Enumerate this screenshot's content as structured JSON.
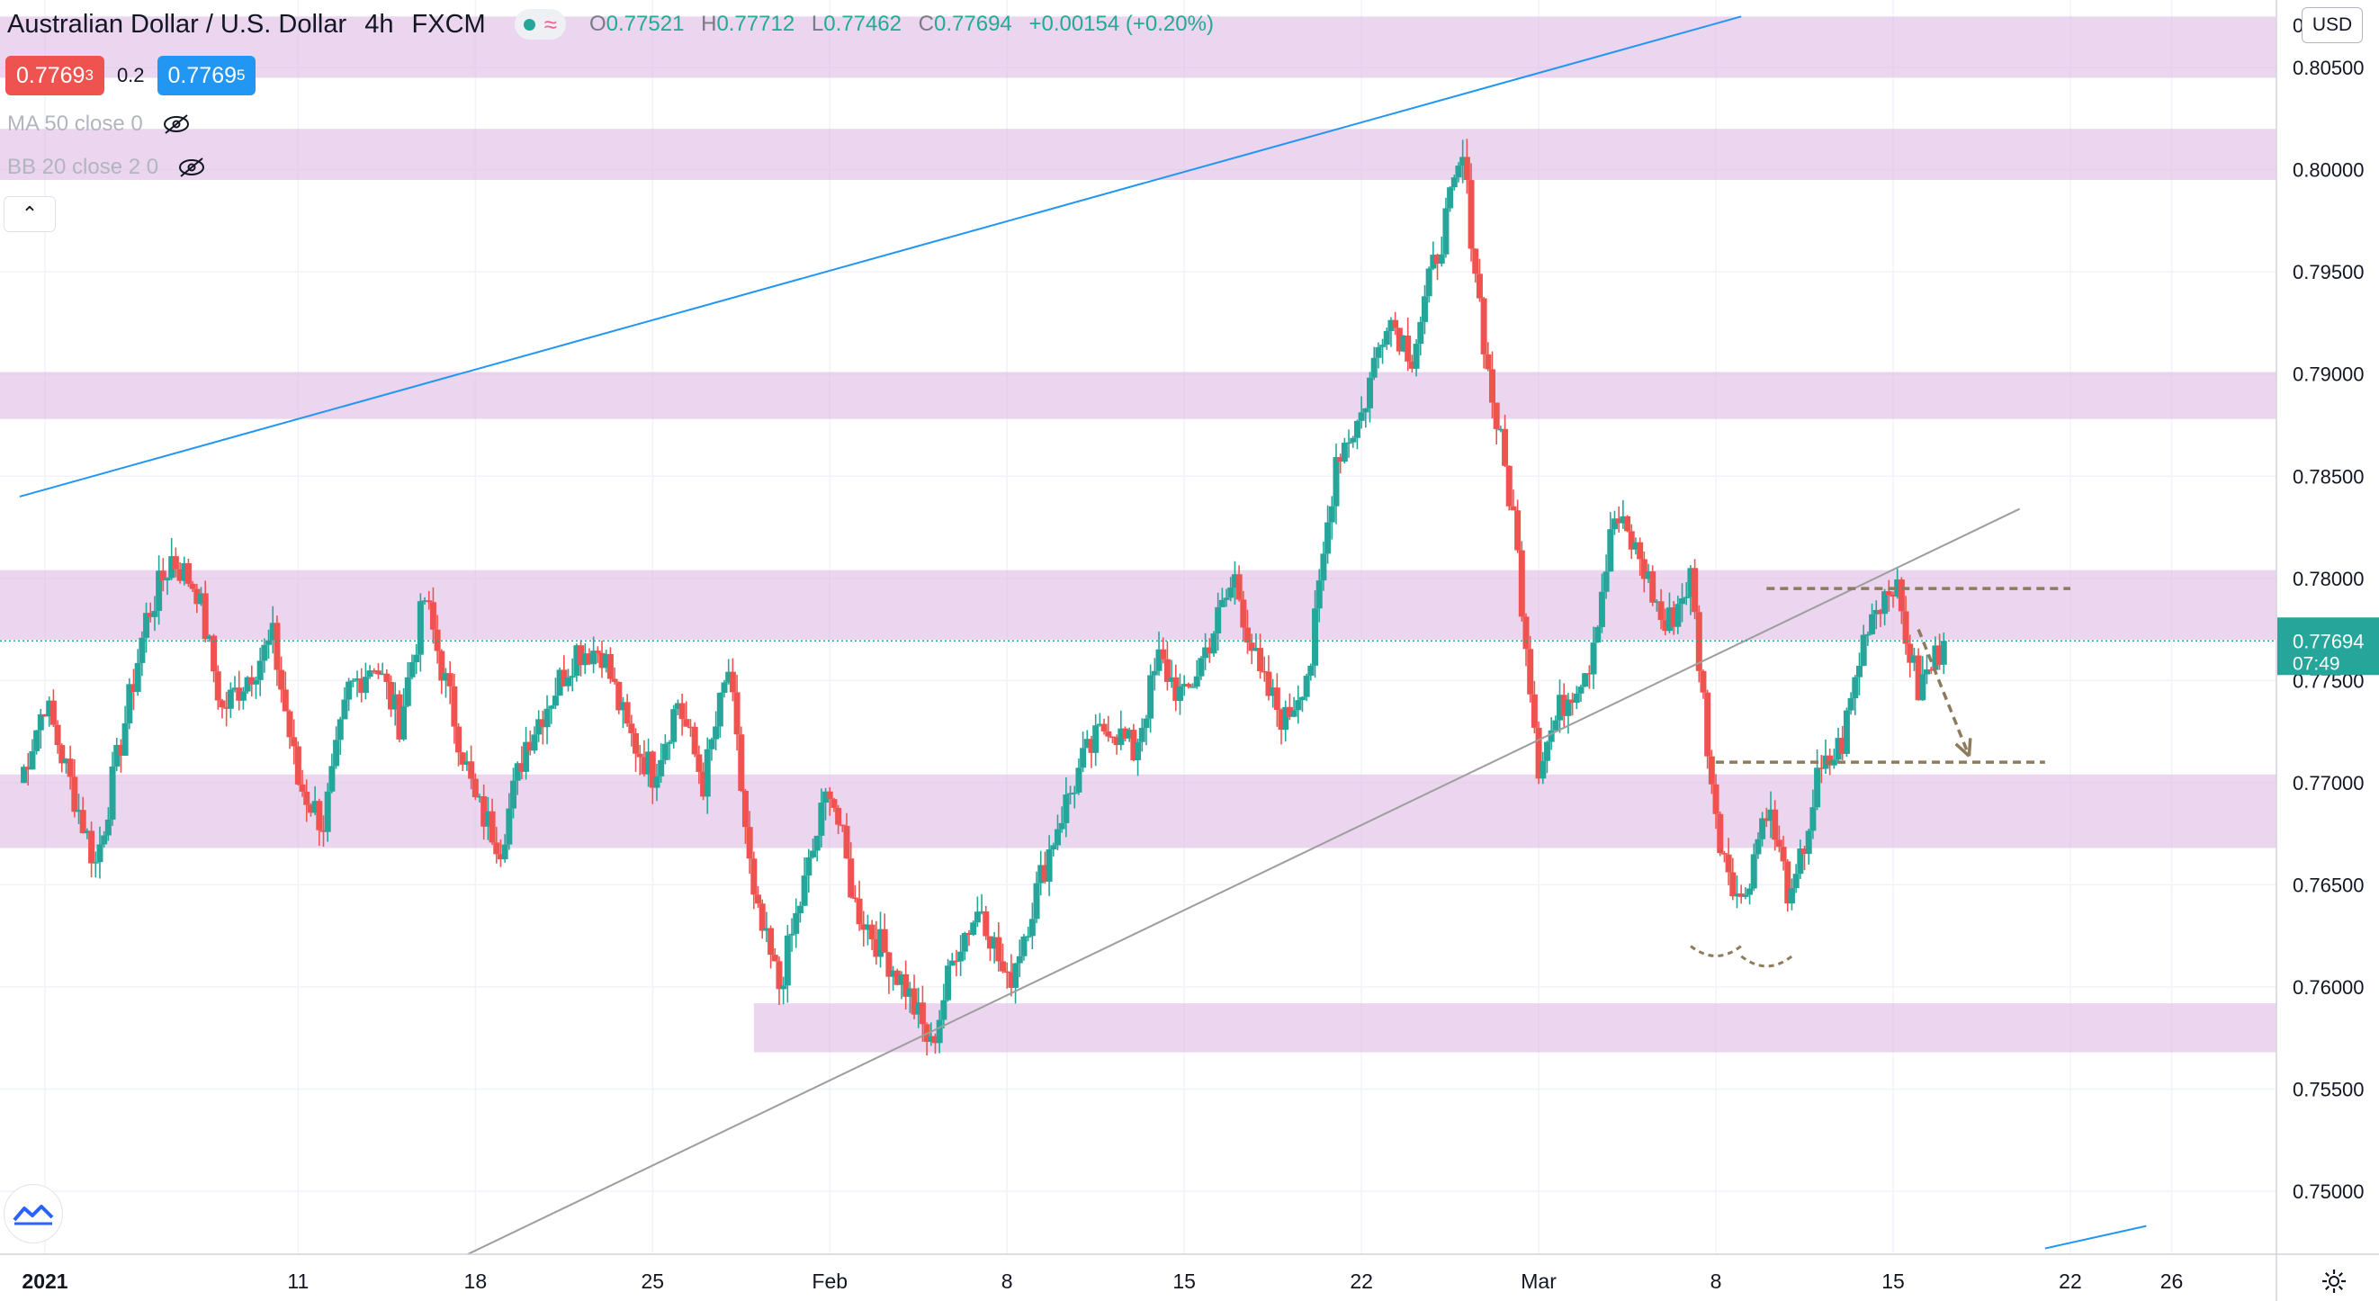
{
  "legend": {
    "symbol": "Australian Dollar / U.S. Dollar",
    "interval": "4h",
    "exchange": "FXCM",
    "ohlc": {
      "o_label": "O",
      "o": "0.77521",
      "h_label": "H",
      "h": "0.77712",
      "l_label": "L",
      "l": "0.77462",
      "c_label": "C",
      "c": "0.77694",
      "change": "+0.00154 (+0.20%)"
    },
    "sell_price": "0.7769",
    "sell_price_sup": "3",
    "spread": "0.2",
    "buy_price": "0.7769",
    "buy_price_sup": "5",
    "indicators": [
      {
        "label": "MA 50 close 0"
      },
      {
        "label": "BB 20 close 2 0"
      }
    ]
  },
  "price_scale": {
    "currency": "USD",
    "current_price": "0.77694",
    "countdown": "07:49",
    "top_partial_label": "0.8",
    "colors": {
      "bull": "#26a69a",
      "bear": "#ef5350",
      "zone": "#e1bee7",
      "trendline_blue": "#2196f3",
      "trendline_grey": "#9e9e9e",
      "annotation": "#8d7b5d"
    }
  },
  "chart_data": {
    "type": "candlestick",
    "title": "Australian Dollar / U.S. Dollar",
    "interval": "4h",
    "y_ticks": [
      0.75,
      0.755,
      0.76,
      0.765,
      0.77,
      0.775,
      0.78,
      0.785,
      0.79,
      0.795,
      0.8,
      0.805
    ],
    "y_tick_labels": [
      "0.75000",
      "0.75500",
      "0.76000",
      "0.76500",
      "0.77000",
      "0.77500",
      "0.78000",
      "0.78500",
      "0.79000",
      "0.79500",
      "0.80000",
      "0.80500"
    ],
    "ylim": [
      0.7465,
      0.8145
    ],
    "x_ticks": [
      "2021-01-01",
      "2021-01-11",
      "2021-01-18",
      "2021-01-25",
      "2021-02-01",
      "2021-02-08",
      "2021-02-15",
      "2021-02-22",
      "2021-03-01",
      "2021-03-08",
      "2021-03-15",
      "2021-03-22",
      "2021-03-26"
    ],
    "x_tick_labels": [
      "2021",
      "11",
      "18",
      "25",
      "Feb",
      "8",
      "15",
      "22",
      "Mar",
      "8",
      "15",
      "22",
      "26"
    ],
    "xlim": [
      "2020-12-31",
      "2021-03-28"
    ],
    "last_price": 0.77694,
    "swing_points": [
      {
        "date": "2020-12-31",
        "price": 0.77
      },
      {
        "date": "2021-01-01",
        "price": 0.774
      },
      {
        "date": "2021-01-03",
        "price": 0.766
      },
      {
        "date": "2021-01-05",
        "price": 0.778
      },
      {
        "date": "2021-01-06",
        "price": 0.781
      },
      {
        "date": "2021-01-07",
        "price": 0.7795
      },
      {
        "date": "2021-01-08",
        "price": 0.7735
      },
      {
        "date": "2021-01-10",
        "price": 0.777
      },
      {
        "date": "2021-01-11",
        "price": 0.77
      },
      {
        "date": "2021-01-12",
        "price": 0.768
      },
      {
        "date": "2021-01-13",
        "price": 0.7745
      },
      {
        "date": "2021-01-14",
        "price": 0.776
      },
      {
        "date": "2021-01-15",
        "price": 0.773
      },
      {
        "date": "2021-01-16",
        "price": 0.779
      },
      {
        "date": "2021-01-17",
        "price": 0.774
      },
      {
        "date": "2021-01-18",
        "price": 0.769
      },
      {
        "date": "2021-01-19",
        "price": 0.767
      },
      {
        "date": "2021-01-20",
        "price": 0.772
      },
      {
        "date": "2021-01-22",
        "price": 0.7765
      },
      {
        "date": "2021-01-23",
        "price": 0.7765
      },
      {
        "date": "2021-01-24",
        "price": 0.7725
      },
      {
        "date": "2021-01-25",
        "price": 0.7705
      },
      {
        "date": "2021-01-26",
        "price": 0.774
      },
      {
        "date": "2021-01-27",
        "price": 0.77
      },
      {
        "date": "2021-01-28",
        "price": 0.7755
      },
      {
        "date": "2021-01-29",
        "price": 0.764
      },
      {
        "date": "2021-01-30",
        "price": 0.76
      },
      {
        "date": "2021-01-31",
        "price": 0.765
      },
      {
        "date": "2021-02-01",
        "price": 0.77
      },
      {
        "date": "2021-02-02",
        "price": 0.764
      },
      {
        "date": "2021-02-03",
        "price": 0.762
      },
      {
        "date": "2021-02-04",
        "price": 0.76
      },
      {
        "date": "2021-02-05",
        "price": 0.757
      },
      {
        "date": "2021-02-06",
        "price": 0.762
      },
      {
        "date": "2021-02-07",
        "price": 0.764
      },
      {
        "date": "2021-02-08",
        "price": 0.76
      },
      {
        "date": "2021-02-09",
        "price": 0.764
      },
      {
        "date": "2021-02-10",
        "price": 0.768
      },
      {
        "date": "2021-02-11",
        "price": 0.771
      },
      {
        "date": "2021-02-12",
        "price": 0.773
      },
      {
        "date": "2021-02-13",
        "price": 0.7715
      },
      {
        "date": "2021-02-14",
        "price": 0.776
      },
      {
        "date": "2021-02-15",
        "price": 0.774
      },
      {
        "date": "2021-02-16",
        "price": 0.777
      },
      {
        "date": "2021-02-17",
        "price": 0.78
      },
      {
        "date": "2021-02-18",
        "price": 0.775
      },
      {
        "date": "2021-02-19",
        "price": 0.773
      },
      {
        "date": "2021-02-20",
        "price": 0.776
      },
      {
        "date": "2021-02-21",
        "price": 0.786
      },
      {
        "date": "2021-02-22",
        "price": 0.788
      },
      {
        "date": "2021-02-23",
        "price": 0.793
      },
      {
        "date": "2021-02-24",
        "price": 0.791
      },
      {
        "date": "2021-02-25",
        "price": 0.796
      },
      {
        "date": "2021-02-26",
        "price": 0.8005
      },
      {
        "date": "2021-02-27",
        "price": 0.79
      },
      {
        "date": "2021-02-28",
        "price": 0.783
      },
      {
        "date": "2021-03-01",
        "price": 0.771
      },
      {
        "date": "2021-03-02",
        "price": 0.774
      },
      {
        "date": "2021-03-03",
        "price": 0.776
      },
      {
        "date": "2021-03-04",
        "price": 0.783
      },
      {
        "date": "2021-03-05",
        "price": 0.781
      },
      {
        "date": "2021-03-06",
        "price": 0.7775
      },
      {
        "date": "2021-03-07",
        "price": 0.78
      },
      {
        "date": "2021-03-08",
        "price": 0.768
      },
      {
        "date": "2021-03-09",
        "price": 0.764
      },
      {
        "date": "2021-03-10",
        "price": 0.769
      },
      {
        "date": "2021-03-11",
        "price": 0.764
      },
      {
        "date": "2021-03-12",
        "price": 0.77
      },
      {
        "date": "2021-03-13",
        "price": 0.772
      },
      {
        "date": "2021-03-14",
        "price": 0.778
      },
      {
        "date": "2021-03-15",
        "price": 0.78
      },
      {
        "date": "2021-03-16",
        "price": 0.7745
      },
      {
        "date": "2021-03-17",
        "price": 0.7769
      }
    ],
    "zones": [
      {
        "from": 0.8045,
        "to": 0.8075
      },
      {
        "from": 0.7995,
        "to": 0.802
      },
      {
        "from": 0.7878,
        "to": 0.7901
      },
      {
        "from": 0.777,
        "to": 0.7804
      },
      {
        "from": 0.7668,
        "to": 0.7704
      },
      {
        "from": 0.7568,
        "to": 0.7592,
        "start": "2021-01-29"
      }
    ],
    "trendlines": [
      {
        "color": "blue",
        "from": {
          "date": "2020-12-31",
          "price": 0.784
        },
        "to": {
          "date": "2021-03-09",
          "price": 0.8075
        }
      },
      {
        "color": "blue",
        "from": {
          "date": "2021-03-21",
          "price": 0.7472
        },
        "to": {
          "date": "2021-03-25",
          "price": 0.7483
        }
      },
      {
        "color": "grey",
        "from": {
          "date": "2021-01-17",
          "price": 0.7465
        },
        "to": {
          "date": "2021-03-20",
          "price": 0.7834
        }
      }
    ],
    "annotations": {
      "resistance_line": {
        "from": {
          "date": "2021-03-10",
          "price": 0.7795
        },
        "to": {
          "date": "2021-03-22",
          "price": 0.7795
        }
      },
      "neckline": {
        "from": {
          "date": "2021-03-08",
          "price": 0.771
        },
        "to": {
          "date": "2021-03-21",
          "price": 0.771
        }
      },
      "arrow": {
        "from": {
          "date": "2021-03-16",
          "price": 0.7775
        },
        "to": {
          "date": "2021-03-18",
          "price": 0.7713
        }
      },
      "bottoms": [
        {
          "date": "2021-03-08",
          "price": 0.762
        },
        {
          "date": "2021-03-10",
          "price": 0.7615
        }
      ]
    }
  }
}
